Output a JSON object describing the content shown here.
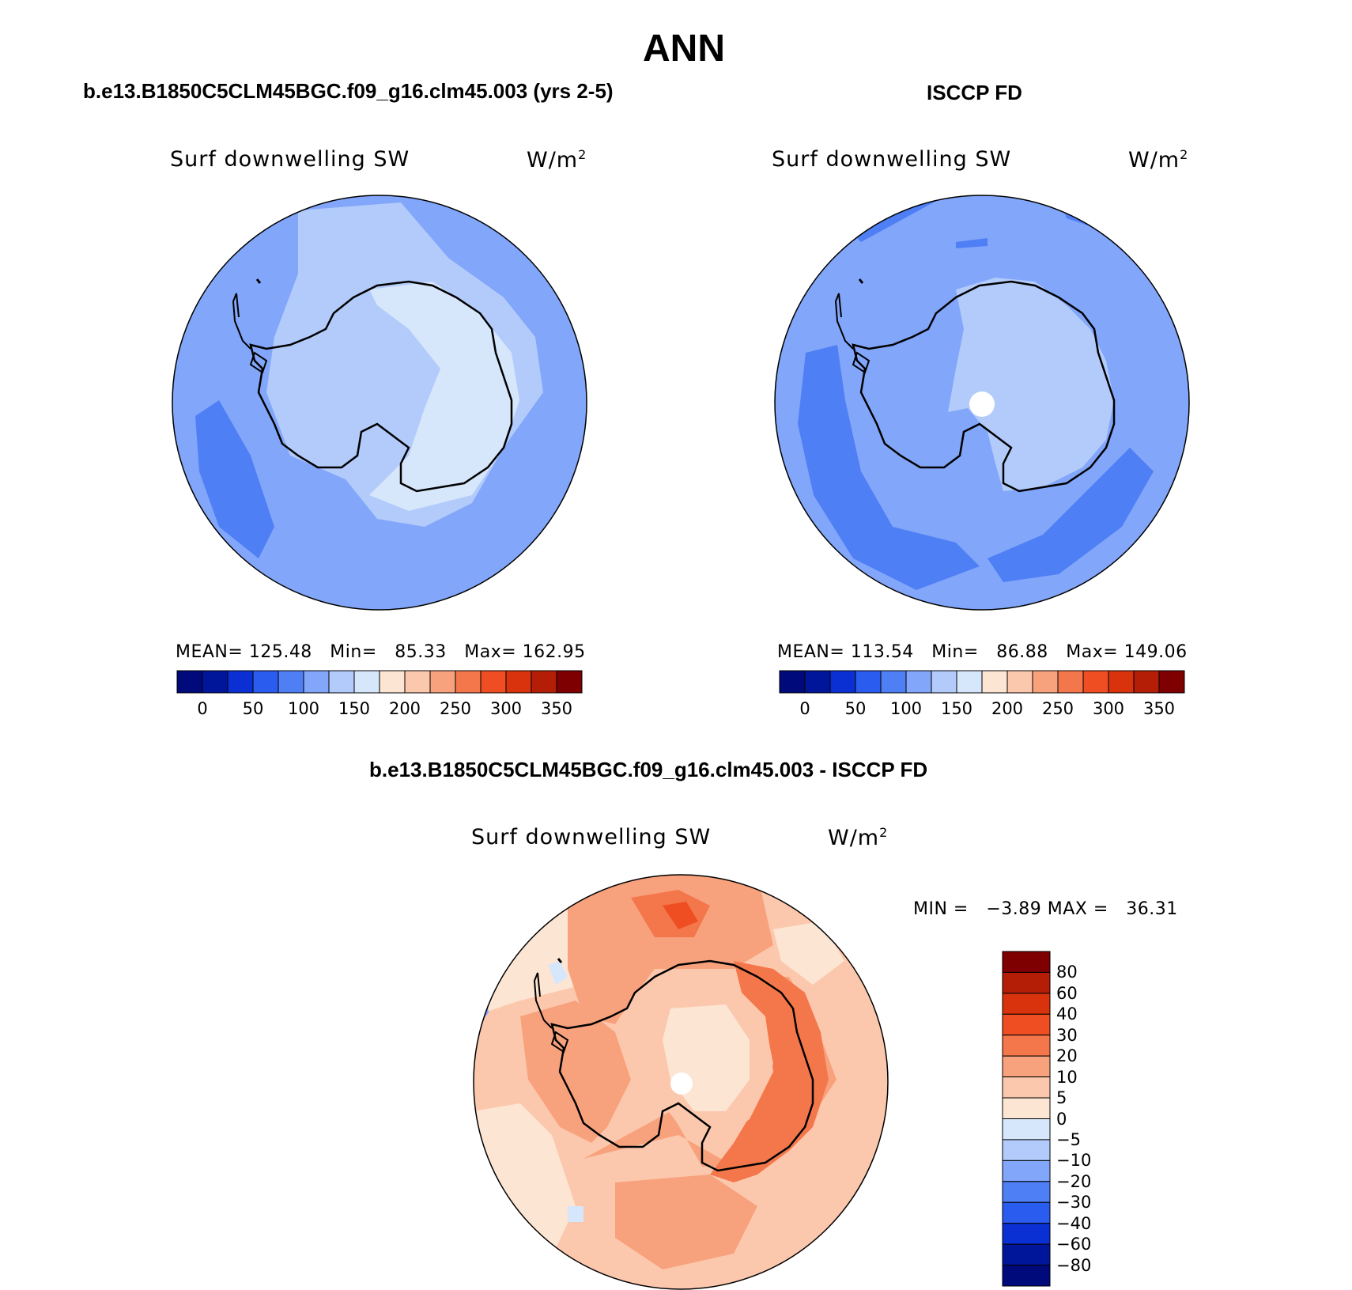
{
  "figure": {
    "title": "ANN",
    "panels": [
      {
        "title": "b.e13.B1850C5CLM45BGC.f09_g16.clm45.003 (yrs 2-5)",
        "variable": "Surf downwelling SW",
        "units": "W/m",
        "units_sup": "2",
        "stats": {
          "mean_label": "MEAN=",
          "mean": "125.48",
          "min_label": "Min=",
          "min": "85.33",
          "max_label": "Max=",
          "max": "162.95"
        }
      },
      {
        "title": "ISCCP FD",
        "variable": "Surf downwelling SW",
        "units": "W/m",
        "units_sup": "2",
        "stats": {
          "mean_label": "MEAN=",
          "mean": "113.54",
          "min_label": "Min=",
          "min": "86.88",
          "max_label": "Max=",
          "max": "149.06"
        }
      },
      {
        "title": "b.e13.B1850C5CLM45BGC.f09_g16.clm45.003 - ISCCP FD",
        "variable": "Surf downwelling SW",
        "units": "W/m",
        "units_sup": "2",
        "stats": {
          "min_label": "MIN =",
          "min": "−3.89",
          "max_label": "MAX =",
          "max": "36.31"
        }
      }
    ],
    "colorbar_abs": {
      "labels": [
        "0",
        "50",
        "100",
        "150",
        "200",
        "250",
        "300",
        "350"
      ],
      "colors": [
        "#000a7a",
        "#00169a",
        "#0a2fd2",
        "#2b5cf0",
        "#4f7ff5",
        "#82a6fa",
        "#b2cbfb",
        "#d6e6fb",
        "#fde5d3",
        "#fcc8ad",
        "#f7a27d",
        "#f4774b",
        "#ef4d22",
        "#d8330c",
        "#b51e06",
        "#7e0000"
      ]
    },
    "colorbar_diff": {
      "labels": [
        "80",
        "60",
        "40",
        "30",
        "20",
        "10",
        "5",
        "0",
        "−5",
        "−10",
        "−20",
        "−30",
        "−40",
        "−60",
        "−80"
      ],
      "colors": [
        "#7e0000",
        "#b51e06",
        "#d8330c",
        "#ef4d22",
        "#f4774b",
        "#f7a27d",
        "#fcc8ad",
        "#fde5d3",
        "#d6e6fb",
        "#b2cbfb",
        "#82a6fa",
        "#4f7ff5",
        "#2b5cf0",
        "#0a2fd2",
        "#00169a",
        "#000a7a"
      ]
    }
  },
  "chart_data": [
    {
      "type": "heatmap",
      "title": "b.e13.B1850C5CLM45BGC.f09_g16.clm45.003 (yrs 2-5)",
      "variable": "Surf downwelling SW",
      "units": "W/m2",
      "mean": 125.48,
      "min": 85.33,
      "max": 162.95,
      "levels": [
        0,
        25,
        50,
        75,
        100,
        125,
        150,
        175,
        200,
        225,
        250,
        275,
        300,
        325,
        350
      ]
    },
    {
      "type": "heatmap",
      "title": "ISCCP FD",
      "variable": "Surf downwelling SW",
      "units": "W/m2",
      "mean": 113.54,
      "min": 86.88,
      "max": 149.06,
      "levels": [
        0,
        25,
        50,
        75,
        100,
        125,
        150,
        175,
        200,
        225,
        250,
        275,
        300,
        325,
        350
      ]
    },
    {
      "type": "heatmap",
      "title": "b.e13.B1850C5CLM45BGC.f09_g16.clm45.003 - ISCCP FD",
      "variable": "Surf downwelling SW",
      "units": "W/m2",
      "min": -3.89,
      "max": 36.31,
      "levels": [
        -80,
        -60,
        -40,
        -30,
        -20,
        -10,
        -5,
        0,
        5,
        10,
        20,
        30,
        40,
        60,
        80
      ]
    }
  ]
}
